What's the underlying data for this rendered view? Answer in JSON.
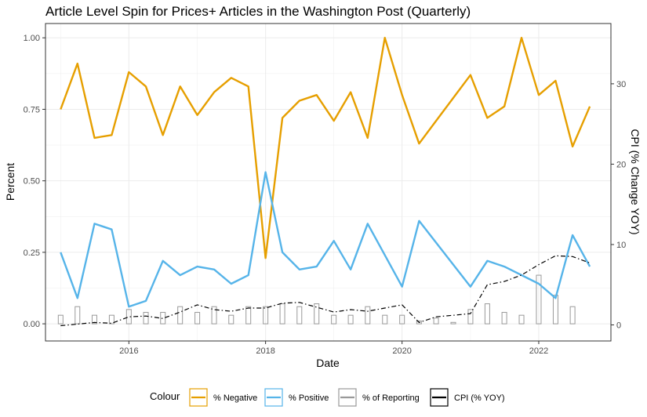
{
  "chart_data": {
    "type": "line",
    "title": "Article Level Spin for Prices+ Articles in the Washington Post (Quarterly)",
    "xlabel": "Date",
    "ylabel": "Percent",
    "y2label": "CPI (% Change YOY)",
    "xlim": [
      "2014-10-12",
      "2023-01-22"
    ],
    "ylim": [
      -0.06,
      1.05
    ],
    "y2lim": [
      -2.0,
      37.5
    ],
    "x_ticks": [
      "2016",
      "2018",
      "2020",
      "2022"
    ],
    "y_ticks": [
      "0.00",
      "0.25",
      "0.50",
      "0.75",
      "1.00"
    ],
    "y2_ticks": [
      "0",
      "10",
      "20",
      "30"
    ],
    "grid": true,
    "legend_position": "bottom",
    "legend_title": "Colour",
    "colors": {
      "negative": "#E69F00",
      "positive": "#56B4E9",
      "reporting": "#999999",
      "cpi": "#000000"
    },
    "x": [
      "2015-01-01",
      "2015-04-01",
      "2015-07-01",
      "2015-10-01",
      "2016-01-01",
      "2016-04-01",
      "2016-07-01",
      "2016-10-01",
      "2017-01-01",
      "2017-04-01",
      "2017-07-01",
      "2017-10-01",
      "2018-01-01",
      "2018-04-01",
      "2018-07-01",
      "2018-10-01",
      "2019-01-01",
      "2019-04-01",
      "2019-07-01",
      "2019-10-01",
      "2020-01-01",
      "2020-04-01",
      "2020-07-01",
      "2020-10-01",
      "2021-01-01",
      "2021-04-01",
      "2021-07-01",
      "2021-10-01",
      "2022-01-01",
      "2022-04-01",
      "2022-07-01",
      "2022-10-01"
    ],
    "series": [
      {
        "name": "% Negative",
        "axis": "left",
        "values": [
          0.75,
          0.91,
          0.65,
          0.66,
          0.88,
          0.83,
          0.66,
          0.83,
          0.73,
          0.81,
          0.86,
          0.83,
          0.23,
          0.72,
          0.78,
          0.8,
          0.71,
          0.81,
          0.65,
          1.0,
          0.8,
          0.63,
          0.71,
          0.79,
          0.87,
          0.72,
          0.76,
          1.0,
          0.8,
          0.85,
          0.62,
          0.76
        ]
      },
      {
        "name": "% Positive",
        "axis": "left",
        "values": [
          0.25,
          0.09,
          0.35,
          0.33,
          0.06,
          0.08,
          0.22,
          0.17,
          0.2,
          0.19,
          0.14,
          0.17,
          0.53,
          0.25,
          0.19,
          0.2,
          0.29,
          0.19,
          0.35,
          null,
          0.13,
          0.36,
          null,
          null,
          0.13,
          0.22,
          0.2,
          null,
          0.14,
          0.09,
          0.31,
          0.2
        ]
      },
      {
        "name": "% of Reporting",
        "axis": "left",
        "type": "bar",
        "values": [
          0.03,
          0.06,
          0.03,
          0.03,
          0.05,
          0.04,
          0.04,
          0.06,
          0.04,
          0.06,
          0.03,
          0.06,
          0.06,
          0.07,
          0.06,
          0.07,
          0.03,
          0.03,
          0.06,
          0.03,
          0.03,
          0.01,
          0.02,
          0.005,
          0.05,
          0.07,
          0.04,
          0.03,
          0.17,
          0.1,
          0.06,
          null
        ]
      },
      {
        "name": "CPI (% YOY)",
        "axis": "right",
        "values": [
          -0.1,
          0.1,
          0.3,
          0.2,
          1.0,
          1.1,
          0.8,
          1.6,
          2.5,
          1.9,
          1.7,
          2.1,
          2.1,
          2.7,
          2.8,
          2.2,
          1.6,
          1.9,
          1.7,
          2.1,
          2.5,
          0.3,
          1.0,
          1.2,
          1.4,
          5.0,
          5.4,
          6.2,
          7.5,
          8.6,
          8.5,
          7.7
        ]
      }
    ]
  }
}
